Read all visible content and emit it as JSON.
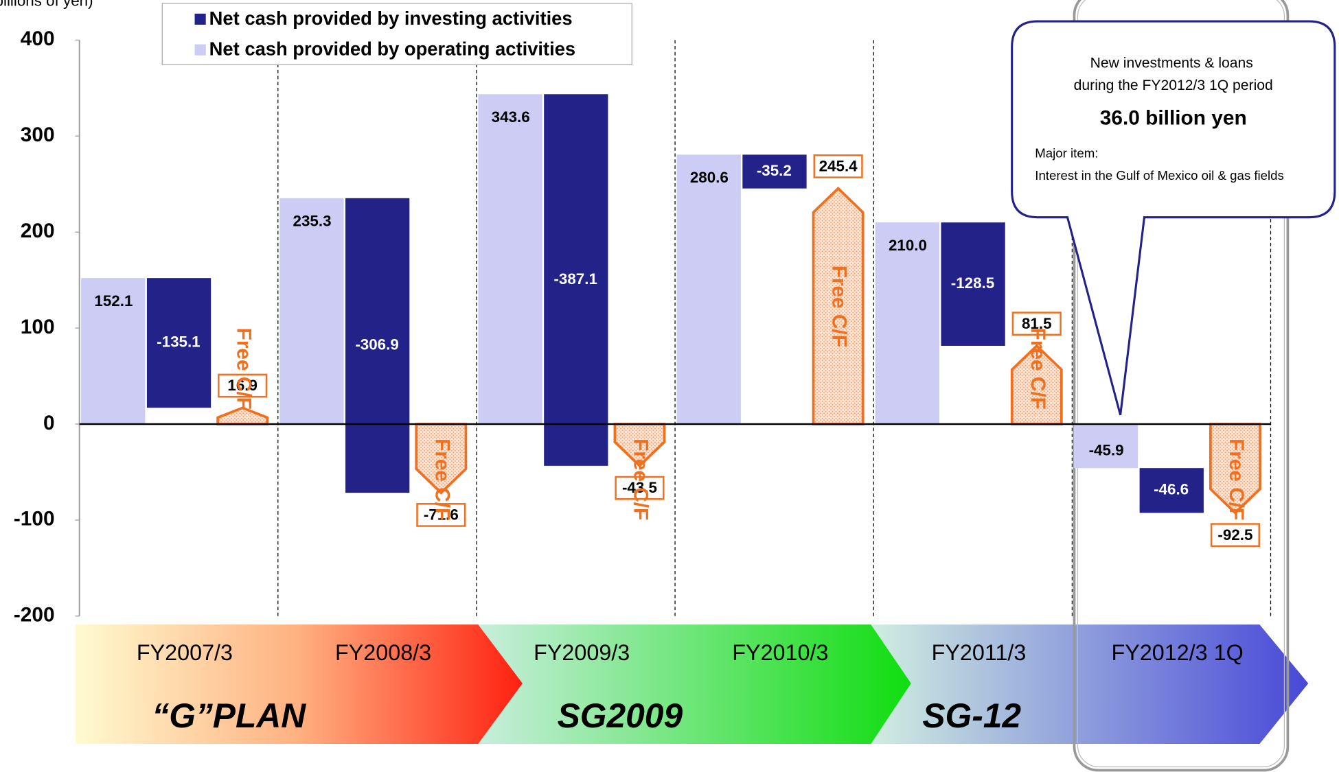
{
  "chart_data": {
    "type": "waterfall",
    "y_label": "(billions of yen)",
    "categories": [
      "FY2007/3",
      "FY2008/3",
      "FY2009/3",
      "FY2010/3",
      "FY2011/3",
      "FY2012/3 1Q"
    ],
    "series": [
      {
        "name": "Net cash provided by operating activities",
        "color": "#ccccf5",
        "values": [
          152.1,
          235.3,
          343.6,
          280.6,
          210.0,
          -45.9
        ],
        "value_labels": [
          "152.1",
          "235.3",
          "343.6",
          "280.6",
          "210.0",
          "-45.9"
        ]
      },
      {
        "name": "Net cash provided by investing activities",
        "color": "#222288",
        "values": [
          -135.1,
          -306.9,
          -387.1,
          -35.2,
          -128.5,
          -46.6
        ]
      },
      {
        "name": "Free C/F",
        "color": "#f07020",
        "values": [
          16.9,
          -71.6,
          -43.5,
          245.4,
          81.5,
          -92.5
        ]
      }
    ],
    "legend_order": [
      1,
      0
    ],
    "ylim": [
      -200,
      400
    ],
    "yticks": [
      -200,
      -100,
      0,
      100,
      200,
      300,
      400
    ],
    "plans": [
      "“G”PLAN",
      "SG2009",
      "SG-12"
    ],
    "annotation": [
      "New investments & loans",
      "during the FY2012/3  1Q period",
      "36.0 billion yen",
      "Major item:",
      "Interest in the Gulf of Mexico oil & gas fields"
    ]
  }
}
